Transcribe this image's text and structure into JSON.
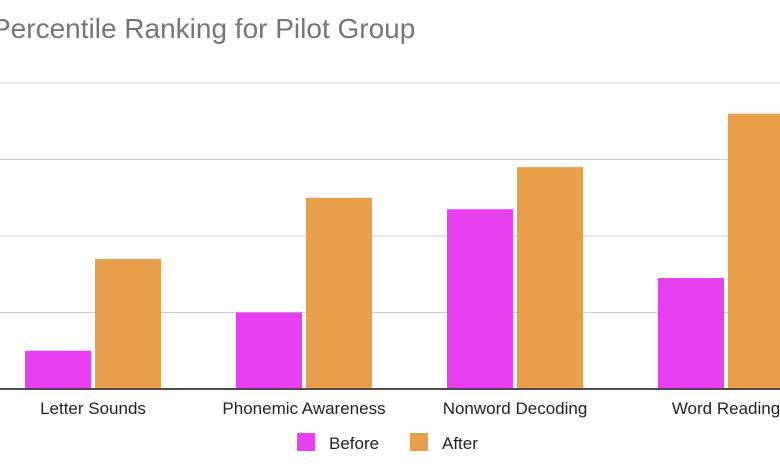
{
  "chart_data": {
    "type": "bar",
    "title": "Percentile Ranking for Pilot Group",
    "categories": [
      "Letter Sounds",
      "Phonemic Awareness",
      "Nonword Decoding",
      "Word Reading"
    ],
    "series": [
      {
        "name": "Before",
        "color": "#e83ff0",
        "values": [
          10,
          20,
          47,
          29
        ]
      },
      {
        "name": "After",
        "color": "#e89e4a",
        "values": [
          34,
          50,
          58,
          72
        ]
      }
    ],
    "xlabel": "",
    "ylabel": "",
    "ylim": [
      0,
      80
    ],
    "gridlines": [
      0,
      20,
      40,
      60,
      80
    ],
    "grid": true,
    "legend": "bottom"
  }
}
